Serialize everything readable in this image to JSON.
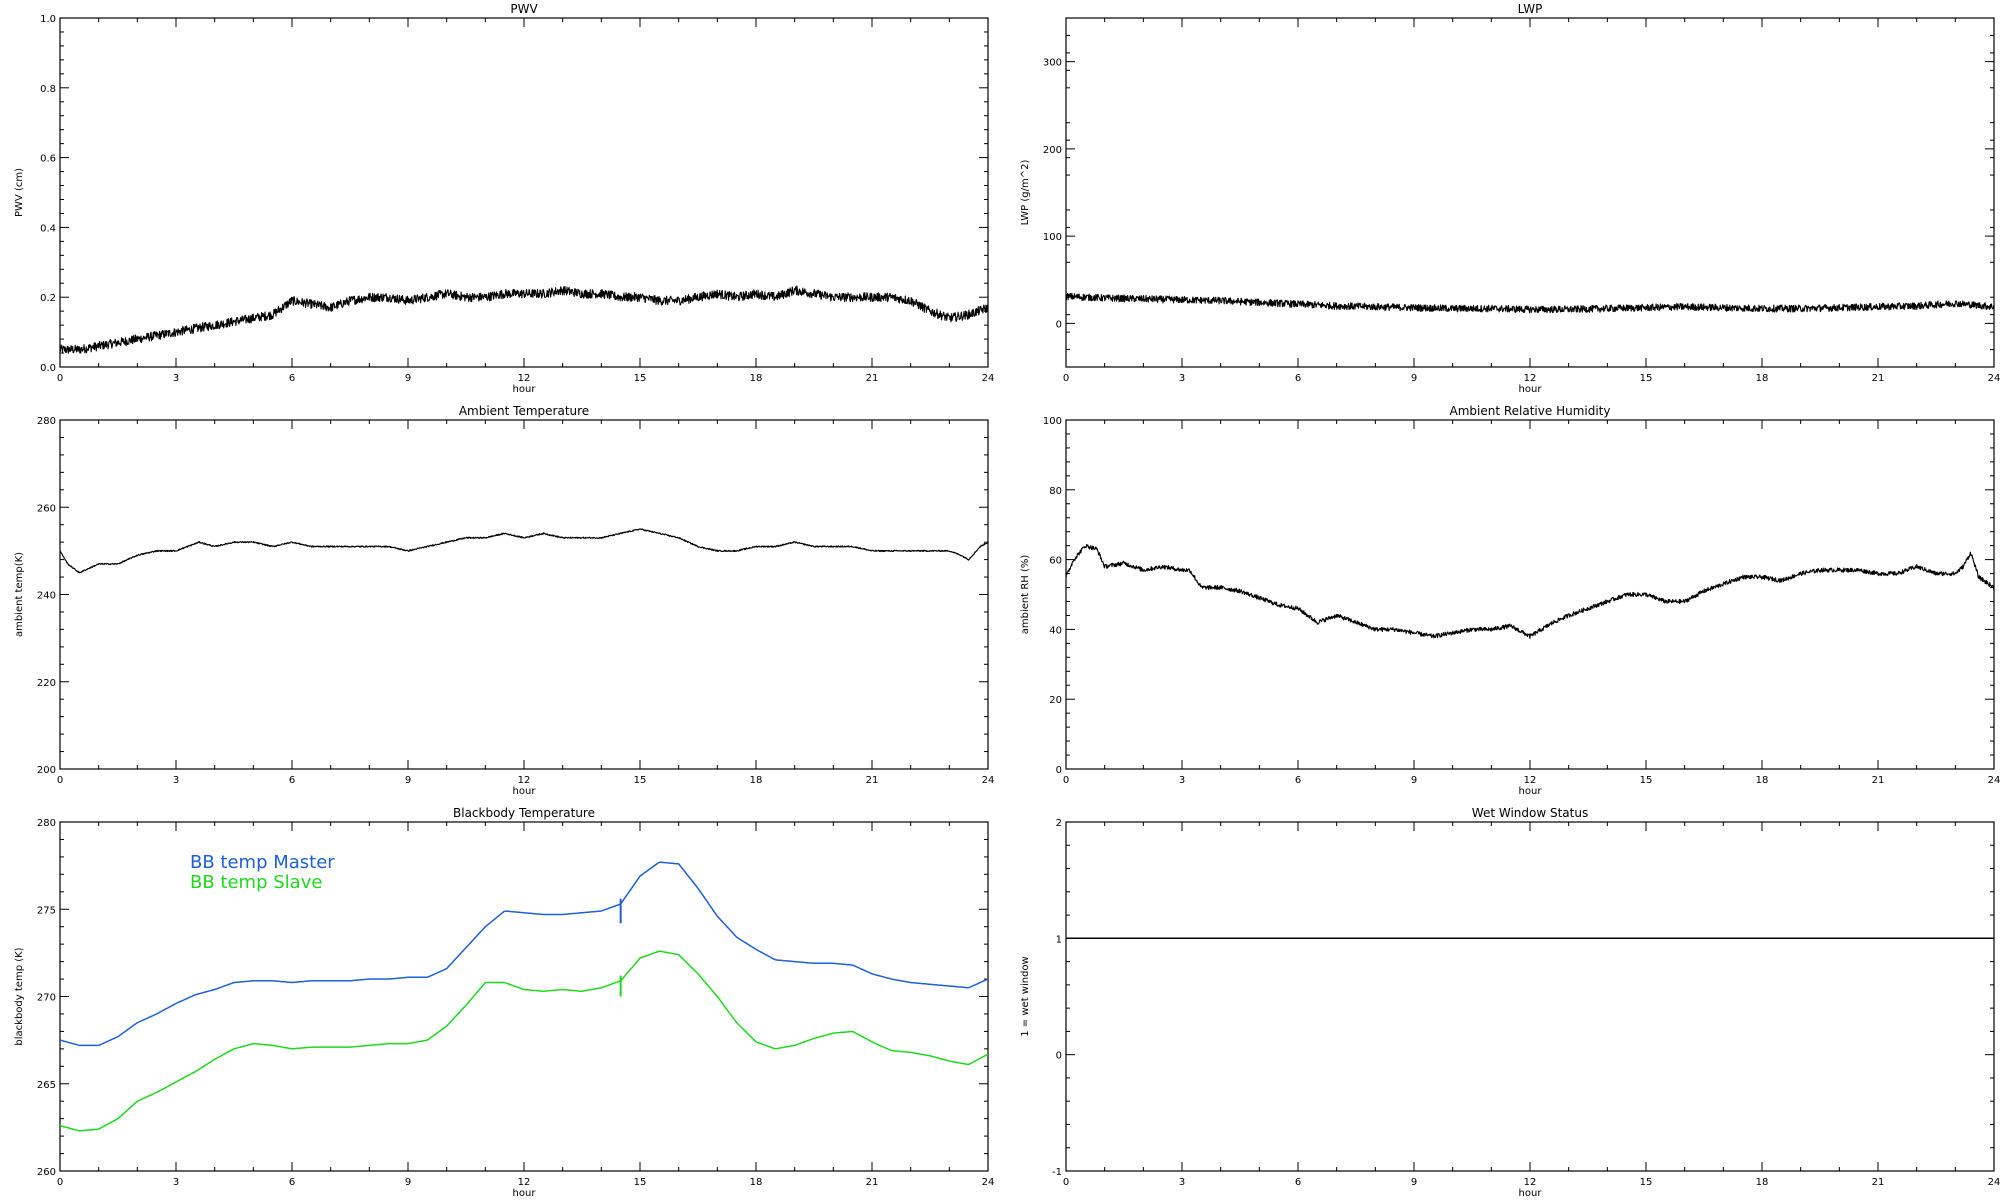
{
  "chart_data": [
    {
      "type": "line",
      "title": "PWV",
      "xlabel": "hour",
      "ylabel": "PWV (cm)",
      "xlim": [
        0,
        24
      ],
      "ylim": [
        0.0,
        1.0
      ],
      "xticks": [
        0,
        3,
        6,
        9,
        12,
        15,
        18,
        21,
        24
      ],
      "yticks": [
        0.0,
        0.2,
        0.4,
        0.6,
        0.8,
        1.0
      ],
      "ytick_labels": [
        "0.0",
        "0.2",
        "0.4",
        "0.6",
        "0.8",
        "1.0"
      ],
      "series": [
        {
          "color": "#000000",
          "noise": 0.013,
          "x": [
            0,
            0.5,
            1,
            1.5,
            2,
            2.5,
            3,
            3.5,
            4,
            4.5,
            5,
            5.5,
            6,
            6.5,
            7,
            7.5,
            8,
            8.5,
            9,
            9.5,
            10,
            10.5,
            11,
            11.5,
            12,
            12.5,
            13,
            13.5,
            14,
            14.5,
            15,
            15.5,
            16,
            16.5,
            17,
            17.5,
            18,
            18.5,
            19,
            19.5,
            20,
            20.5,
            21,
            21.5,
            22,
            22.5,
            23,
            23.5,
            24
          ],
          "y": [
            0.05,
            0.05,
            0.06,
            0.07,
            0.08,
            0.09,
            0.1,
            0.11,
            0.12,
            0.13,
            0.14,
            0.15,
            0.19,
            0.18,
            0.17,
            0.19,
            0.2,
            0.2,
            0.19,
            0.2,
            0.21,
            0.2,
            0.2,
            0.21,
            0.21,
            0.21,
            0.22,
            0.21,
            0.21,
            0.2,
            0.2,
            0.19,
            0.19,
            0.2,
            0.21,
            0.2,
            0.21,
            0.2,
            0.22,
            0.21,
            0.2,
            0.2,
            0.2,
            0.2,
            0.19,
            0.16,
            0.14,
            0.15,
            0.17
          ]
        }
      ]
    },
    {
      "type": "line",
      "title": "LWP",
      "xlabel": "hour",
      "ylabel": "LWP (g/m^2)",
      "xlim": [
        0,
        24
      ],
      "ylim": [
        -50,
        350
      ],
      "xticks": [
        0,
        3,
        6,
        9,
        12,
        15,
        18,
        21,
        24
      ],
      "yticks": [
        0,
        100,
        200,
        300
      ],
      "ytick_labels": [
        "0",
        "100",
        "200",
        "300"
      ],
      "series": [
        {
          "color": "#000000",
          "noise": 4,
          "x": [
            0,
            1,
            2,
            3,
            4,
            5,
            6,
            7,
            8,
            9,
            10,
            11,
            12,
            13,
            14,
            15,
            16,
            17,
            18,
            19,
            20,
            21,
            22,
            23,
            24
          ],
          "y": [
            31,
            29,
            28,
            27,
            26,
            24,
            22,
            20,
            19,
            18,
            17,
            17,
            16,
            16,
            17,
            18,
            19,
            18,
            17,
            17,
            18,
            19,
            20,
            23,
            19
          ]
        }
      ]
    },
    {
      "type": "line",
      "title": "Ambient Temperature",
      "xlabel": "hour",
      "ylabel": "ambient temp(K)",
      "xlim": [
        0,
        24
      ],
      "ylim": [
        200,
        280
      ],
      "xticks": [
        0,
        3,
        6,
        9,
        12,
        15,
        18,
        21,
        24
      ],
      "yticks": [
        200,
        220,
        240,
        260,
        280
      ],
      "ytick_labels": [
        "200",
        "220",
        "240",
        "260",
        "280"
      ],
      "series": [
        {
          "color": "#000000",
          "noise": 0.15,
          "x": [
            0,
            0.2,
            0.5,
            1,
            1.5,
            2,
            2.5,
            3,
            3.3,
            3.6,
            4,
            4.5,
            5,
            5.5,
            6,
            6.5,
            7,
            7.5,
            8,
            8.5,
            9,
            9.5,
            10,
            10.5,
            11,
            11.5,
            12,
            12.5,
            13,
            13.5,
            14,
            14.5,
            15,
            15.5,
            16,
            16.5,
            17,
            17.5,
            18,
            18.5,
            19,
            19.5,
            20,
            20.5,
            21,
            21.5,
            22,
            22.5,
            23,
            23.3,
            23.5,
            23.8,
            24
          ],
          "y": [
            250,
            247,
            245,
            247,
            247,
            249,
            250,
            250,
            251,
            252,
            251,
            252,
            252,
            251,
            252,
            251,
            251,
            251,
            251,
            251,
            250,
            251,
            252,
            253,
            253,
            254,
            253,
            254,
            253,
            253,
            253,
            254,
            255,
            254,
            253,
            251,
            250,
            250,
            251,
            251,
            252,
            251,
            251,
            251,
            250,
            250,
            250,
            250,
            250,
            249,
            248,
            251,
            252
          ]
        }
      ]
    },
    {
      "type": "line",
      "title": "Ambient Relative Humidity",
      "xlabel": "hour",
      "ylabel": "ambient RH (%)",
      "xlim": [
        0,
        24
      ],
      "ylim": [
        0,
        100
      ],
      "xticks": [
        0,
        3,
        6,
        9,
        12,
        15,
        18,
        21,
        24
      ],
      "yticks": [
        0,
        20,
        40,
        60,
        80,
        100
      ],
      "ytick_labels": [
        "0",
        "20",
        "40",
        "60",
        "80",
        "100"
      ],
      "series": [
        {
          "color": "#000000",
          "noise": 0.6,
          "x": [
            0,
            0.2,
            0.5,
            0.8,
            1,
            1.5,
            2,
            2.5,
            3,
            3.2,
            3.5,
            4,
            4.5,
            5,
            5.5,
            6,
            6.5,
            7,
            7.5,
            8,
            8.5,
            9,
            9.5,
            10,
            10.5,
            11,
            11.5,
            12,
            12.3,
            12.6,
            13,
            13.5,
            14,
            14.5,
            15,
            15.5,
            16,
            16.5,
            17,
            17.5,
            18,
            18.5,
            19,
            19.5,
            20,
            20.5,
            21,
            21.5,
            22,
            22.5,
            23,
            23.2,
            23.4,
            23.6,
            24
          ],
          "y": [
            55,
            60,
            64,
            63,
            58,
            59,
            57,
            58,
            57,
            57,
            52,
            52,
            51,
            49,
            47,
            46,
            42,
            44,
            42,
            40,
            40,
            39,
            38,
            39,
            40,
            40,
            41,
            38,
            40,
            42,
            44,
            46,
            48,
            50,
            50,
            48,
            48,
            51,
            53,
            55,
            55,
            54,
            56,
            57,
            57,
            57,
            56,
            56,
            58,
            56,
            56,
            58,
            62,
            55,
            52
          ]
        }
      ]
    },
    {
      "type": "line",
      "title": "Blackbody Temperature",
      "xlabel": "hour",
      "ylabel": "blackbody temp (K)",
      "xlim": [
        0,
        24
      ],
      "ylim": [
        260,
        280
      ],
      "xticks": [
        0,
        3,
        6,
        9,
        12,
        15,
        18,
        21,
        24
      ],
      "yticks": [
        260,
        265,
        270,
        275,
        280
      ],
      "ytick_labels": [
        "260",
        "265",
        "270",
        "275",
        "280"
      ],
      "legend_position": "upper-left",
      "series": [
        {
          "name": "BB temp Master",
          "color": "#1e5fd8",
          "noise": 0,
          "x": [
            0,
            0.5,
            1,
            1.5,
            2,
            2.5,
            3,
            3.5,
            4,
            4.5,
            5,
            5.5,
            6,
            6.5,
            7,
            7.5,
            8,
            8.5,
            9,
            9.5,
            10,
            10.5,
            11,
            11.5,
            12,
            12.5,
            13,
            13.5,
            14,
            14.5,
            15,
            15.5,
            16,
            16.5,
            17,
            17.5,
            18,
            18.5,
            19,
            19.5,
            20,
            20.5,
            21,
            21.5,
            22,
            22.5,
            23,
            23.5,
            24
          ],
          "y": [
            267.5,
            267.2,
            267.2,
            267.7,
            268.5,
            269.0,
            269.6,
            270.1,
            270.4,
            270.8,
            270.9,
            270.9,
            270.8,
            270.9,
            270.9,
            270.9,
            271.0,
            271.0,
            271.1,
            271.1,
            271.6,
            272.8,
            274.0,
            274.9,
            274.8,
            274.7,
            274.7,
            274.8,
            274.9,
            275.3,
            276.9,
            277.7,
            277.6,
            276.2,
            274.6,
            273.4,
            272.7,
            272.1,
            272.0,
            271.9,
            271.9,
            271.8,
            271.3,
            271.0,
            270.8,
            270.7,
            270.6,
            270.5,
            271.0
          ],
          "spike": {
            "x": 14.5,
            "y": [
              274.2,
              275.6
            ]
          }
        },
        {
          "name": "BB temp Slave",
          "color": "#1fd81f",
          "noise": 0,
          "x": [
            0,
            0.5,
            1,
            1.5,
            2,
            2.5,
            3,
            3.5,
            4,
            4.5,
            5,
            5.5,
            6,
            6.5,
            7,
            7.5,
            8,
            8.5,
            9,
            9.5,
            10,
            10.5,
            11,
            11.5,
            12,
            12.5,
            13,
            13.5,
            14,
            14.5,
            15,
            15.5,
            16,
            16.5,
            17,
            17.5,
            18,
            18.5,
            19,
            19.5,
            20,
            20.5,
            21,
            21.5,
            22,
            22.5,
            23,
            23.5,
            24
          ],
          "y": [
            262.6,
            262.3,
            262.4,
            263.0,
            264.0,
            264.5,
            265.1,
            265.7,
            266.4,
            267.0,
            267.3,
            267.2,
            267.0,
            267.1,
            267.1,
            267.1,
            267.2,
            267.3,
            267.3,
            267.5,
            268.3,
            269.5,
            270.8,
            270.8,
            270.4,
            270.3,
            270.4,
            270.3,
            270.5,
            270.9,
            272.2,
            272.6,
            272.4,
            271.3,
            270.0,
            268.5,
            267.4,
            267.0,
            267.2,
            267.6,
            267.9,
            268.0,
            267.4,
            266.9,
            266.8,
            266.6,
            266.3,
            266.1,
            266.7
          ],
          "spike": {
            "x": 14.5,
            "y": [
              270.0,
              271.2
            ]
          }
        }
      ]
    },
    {
      "type": "line",
      "title": "Wet Window Status",
      "xlabel": "hour",
      "ylabel": "1 = wet window",
      "xlim": [
        0,
        24
      ],
      "ylim": [
        -1,
        2
      ],
      "xticks": [
        0,
        3,
        6,
        9,
        12,
        15,
        18,
        21,
        24
      ],
      "yticks": [
        -1,
        0,
        1,
        2
      ],
      "ytick_labels": [
        "-1",
        "0",
        "1",
        "2"
      ],
      "series": [
        {
          "color": "#000000",
          "noise": 0,
          "x": [
            0,
            24
          ],
          "y": [
            1,
            1
          ]
        }
      ]
    }
  ]
}
